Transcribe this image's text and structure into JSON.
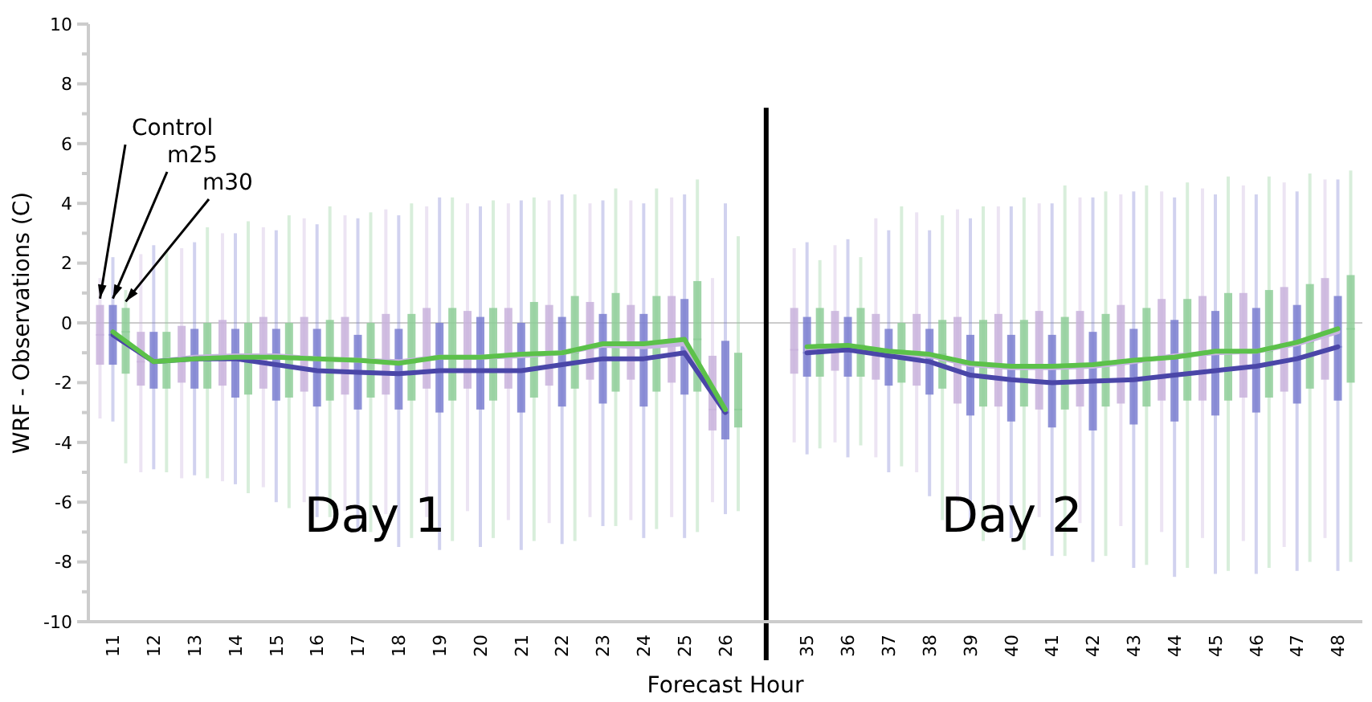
{
  "chart_data": {
    "type": "box",
    "xlabel": "Forecast Hour",
    "ylabel": "WRF  -  Observations (C)",
    "categories": [
      "11",
      "12",
      "13",
      "14",
      "15",
      "16",
      "17",
      "18",
      "19",
      "20",
      "21",
      "22",
      "23",
      "24",
      "25",
      "26",
      null,
      "35",
      "36",
      "37",
      "38",
      "39",
      "40",
      "41",
      "42",
      "43",
      "44",
      "45",
      "46",
      "47",
      "48"
    ],
    "ylim": [
      -10,
      10
    ],
    "yticks": [
      -10,
      {
        "value": -9,
        "label": null
      },
      -8,
      {
        "value": -7,
        "label": null
      },
      -6,
      {
        "value": -5,
        "label": null
      },
      -4,
      {
        "value": -3,
        "label": null
      },
      -2,
      {
        "value": -1,
        "label": null
      },
      0,
      {
        "value": 1,
        "label": null
      },
      2,
      {
        "value": 3,
        "label": null
      },
      4,
      {
        "value": 5,
        "label": null
      },
      6,
      {
        "value": 7,
        "label": null
      },
      8,
      {
        "value": 9,
        "label": null
      },
      10
    ],
    "grid": false,
    "legend": "top left",
    "annotations": [
      "Day 1",
      "Day 2"
    ],
    "ref_lines": [
      {
        "axis": "y",
        "value": 0,
        "color": "#cccccc"
      }
    ],
    "series": [
      {
        "name": "Control",
        "color": "#c9b3dc",
        "boxes": [
          {
            "low": -3.2,
            "q1": -1.4,
            "median": -0.4,
            "q3": 0.6,
            "high": 1.5
          },
          {
            "low": -5.0,
            "q1": -2.1,
            "median": -1.3,
            "q3": -0.3,
            "high": 2.3
          },
          {
            "low": -5.2,
            "q1": -2.0,
            "median": -1.15,
            "q3": -0.1,
            "high": 2.5
          },
          {
            "low": -5.3,
            "q1": -2.1,
            "median": -1.1,
            "q3": 0.1,
            "high": 3.0
          },
          {
            "low": -5.5,
            "q1": -2.2,
            "median": -1.1,
            "q3": 0.2,
            "high": 3.2
          },
          {
            "low": -6.0,
            "q1": -2.3,
            "median": -1.2,
            "q3": 0.2,
            "high": 3.5
          },
          {
            "low": -6.3,
            "q1": -2.4,
            "median": -1.25,
            "q3": 0.2,
            "high": 3.6
          },
          {
            "low": -6.4,
            "q1": -2.4,
            "median": -1.3,
            "q3": 0.3,
            "high": 3.8
          },
          {
            "low": -6.5,
            "q1": -2.2,
            "median": -1.15,
            "q3": 0.5,
            "high": 3.9
          },
          {
            "low": -6.3,
            "q1": -2.2,
            "median": -1.15,
            "q3": 0.4,
            "high": 4.0
          },
          {
            "low": -6.6,
            "q1": -2.2,
            "median": -1.1,
            "q3": 0.5,
            "high": 4.0
          },
          {
            "low": -6.7,
            "q1": -2.1,
            "median": -1.0,
            "q3": 0.6,
            "high": 4.1
          },
          {
            "low": -6.5,
            "q1": -1.9,
            "median": -0.75,
            "q3": 0.7,
            "high": 4.0
          },
          {
            "low": -6.6,
            "q1": -1.9,
            "median": -0.8,
            "q3": 0.6,
            "high": 4.1
          },
          {
            "low": -6.5,
            "q1": -2.0,
            "median": -0.7,
            "q3": 0.9,
            "high": 4.2
          },
          {
            "low": -6.0,
            "q1": -3.6,
            "median": -2.9,
            "q3": -1.1,
            "high": 1.5
          },
          null,
          {
            "low": -4.0,
            "q1": -1.7,
            "median": -0.9,
            "q3": 0.5,
            "high": 2.5
          },
          {
            "low": -4.0,
            "q1": -1.6,
            "median": -0.85,
            "q3": 0.4,
            "high": 2.6
          },
          {
            "low": -4.5,
            "q1": -1.9,
            "median": -1.0,
            "q3": 0.3,
            "high": 3.5
          },
          {
            "low": -5.0,
            "q1": -2.1,
            "median": -1.1,
            "q3": 0.3,
            "high": 3.7
          },
          {
            "low": -6.0,
            "q1": -2.7,
            "median": -1.4,
            "q3": 0.2,
            "high": 3.8
          },
          {
            "low": -6.2,
            "q1": -2.8,
            "median": -1.5,
            "q3": 0.3,
            "high": 3.9
          },
          {
            "low": -6.5,
            "q1": -2.9,
            "median": -1.5,
            "q3": 0.4,
            "high": 4.0
          },
          {
            "low": -6.7,
            "q1": -2.8,
            "median": -1.45,
            "q3": 0.4,
            "high": 4.2
          },
          {
            "low": -6.8,
            "q1": -2.7,
            "median": -1.3,
            "q3": 0.6,
            "high": 4.3
          },
          {
            "low": -7.0,
            "q1": -2.6,
            "median": -1.1,
            "q3": 0.8,
            "high": 4.4
          },
          {
            "low": -7.2,
            "q1": -2.6,
            "median": -1.0,
            "q3": 0.9,
            "high": 4.5
          },
          {
            "low": -7.3,
            "q1": -2.5,
            "median": -0.95,
            "q3": 1.0,
            "high": 4.6
          },
          {
            "low": -7.5,
            "q1": -2.3,
            "median": -0.7,
            "q3": 1.2,
            "high": 4.7
          },
          {
            "low": -7.2,
            "q1": -1.9,
            "median": -0.3,
            "q3": 1.5,
            "high": 4.8
          }
        ]
      },
      {
        "name": "m25",
        "color": "#7b7fd0",
        "boxes": [
          {
            "low": -3.3,
            "q1": -1.4,
            "median": -0.4,
            "q3": 0.6,
            "high": 2.2
          },
          {
            "low": -4.9,
            "q1": -2.2,
            "median": -1.3,
            "q3": -0.3,
            "high": 2.6
          },
          {
            "low": -5.1,
            "q1": -2.2,
            "median": -1.2,
            "q3": -0.2,
            "high": 2.7
          },
          {
            "low": -5.4,
            "q1": -2.5,
            "median": -1.2,
            "q3": -0.2,
            "high": 3.0
          },
          {
            "low": -6.0,
            "q1": -2.6,
            "median": -1.4,
            "q3": -0.2,
            "high": 3.1
          },
          {
            "low": -6.5,
            "q1": -2.8,
            "median": -1.6,
            "q3": -0.2,
            "high": 3.3
          },
          {
            "low": -7.0,
            "q1": -2.9,
            "median": -1.65,
            "q3": -0.4,
            "high": 3.5
          },
          {
            "low": -7.5,
            "q1": -2.9,
            "median": -1.7,
            "q3": -0.2,
            "high": 3.6
          },
          {
            "low": -7.6,
            "q1": -3.0,
            "median": -1.6,
            "q3": 0.0,
            "high": 4.2
          },
          {
            "low": -7.5,
            "q1": -2.9,
            "median": -1.6,
            "q3": 0.2,
            "high": 3.9
          },
          {
            "low": -7.6,
            "q1": -3.0,
            "median": -1.6,
            "q3": 0.0,
            "high": 4.1
          },
          {
            "low": -7.4,
            "q1": -2.8,
            "median": -1.4,
            "q3": 0.2,
            "high": 4.3
          },
          {
            "low": -6.8,
            "q1": -2.7,
            "median": -1.2,
            "q3": 0.3,
            "high": 4.1
          },
          {
            "low": -7.2,
            "q1": -2.8,
            "median": -1.2,
            "q3": 0.3,
            "high": 4.0
          },
          {
            "low": -7.2,
            "q1": -2.4,
            "median": -1.0,
            "q3": 0.8,
            "high": 4.3
          },
          {
            "low": -6.4,
            "q1": -3.9,
            "median": -3.0,
            "q3": -0.6,
            "high": 4.0
          },
          null,
          {
            "low": -4.4,
            "q1": -1.8,
            "median": -1.0,
            "q3": 0.2,
            "high": 2.7
          },
          {
            "low": -4.5,
            "q1": -1.8,
            "median": -0.9,
            "q3": 0.2,
            "high": 2.8
          },
          {
            "low": -5.0,
            "q1": -2.1,
            "median": -1.1,
            "q3": -0.2,
            "high": 3.1
          },
          {
            "low": -5.8,
            "q1": -2.4,
            "median": -1.3,
            "q3": -0.2,
            "high": 3.1
          },
          {
            "low": -6.8,
            "q1": -3.1,
            "median": -1.75,
            "q3": -0.4,
            "high": 3.5
          },
          {
            "low": -7.2,
            "q1": -3.3,
            "median": -1.9,
            "q3": -0.4,
            "high": 3.9
          },
          {
            "low": -7.8,
            "q1": -3.5,
            "median": -2.0,
            "q3": -0.4,
            "high": 4.0
          },
          {
            "low": -8.0,
            "q1": -3.6,
            "median": -1.95,
            "q3": -0.3,
            "high": 4.2
          },
          {
            "low": -8.2,
            "q1": -3.4,
            "median": -1.9,
            "q3": -0.2,
            "high": 4.4
          },
          {
            "low": -8.5,
            "q1": -3.3,
            "median": -1.75,
            "q3": 0.1,
            "high": 4.2
          },
          {
            "low": -8.4,
            "q1": -3.1,
            "median": -1.6,
            "q3": 0.4,
            "high": 4.3
          },
          {
            "low": -8.4,
            "q1": -3.0,
            "median": -1.45,
            "q3": 0.5,
            "high": 4.3
          },
          {
            "low": -8.3,
            "q1": -2.7,
            "median": -1.2,
            "q3": 0.6,
            "high": 4.4
          },
          {
            "low": -8.3,
            "q1": -2.6,
            "median": -0.8,
            "q3": 0.9,
            "high": 4.8
          }
        ]
      },
      {
        "name": "m30",
        "color": "#8fce99",
        "boxes": [
          {
            "low": -4.7,
            "q1": -1.7,
            "median": -0.3,
            "q3": 0.5,
            "high": 1.1
          },
          {
            "low": -5.0,
            "q1": -2.2,
            "median": -1.3,
            "q3": -0.3,
            "high": 2.4
          },
          {
            "low": -5.2,
            "q1": -2.2,
            "median": -1.2,
            "q3": 0.0,
            "high": 3.2
          },
          {
            "low": -5.7,
            "q1": -2.4,
            "median": -1.15,
            "q3": 0.0,
            "high": 3.4
          },
          {
            "low": -6.2,
            "q1": -2.5,
            "median": -1.15,
            "q3": 0.0,
            "high": 3.6
          },
          {
            "low": -6.5,
            "q1": -2.6,
            "median": -1.2,
            "q3": 0.1,
            "high": 3.9
          },
          {
            "low": -7.0,
            "q1": -2.5,
            "median": -1.25,
            "q3": 0.0,
            "high": 3.7
          },
          {
            "low": -7.2,
            "q1": -2.6,
            "median": -1.35,
            "q3": 0.3,
            "high": 4.0
          },
          {
            "low": -7.3,
            "q1": -2.6,
            "median": -1.15,
            "q3": 0.5,
            "high": 4.2
          },
          {
            "low": -7.2,
            "q1": -2.6,
            "median": -1.15,
            "q3": 0.5,
            "high": 4.1
          },
          {
            "low": -7.3,
            "q1": -2.5,
            "median": -1.05,
            "q3": 0.7,
            "high": 4.2
          },
          {
            "low": -7.3,
            "q1": -2.2,
            "median": -1.0,
            "q3": 0.9,
            "high": 4.3
          },
          {
            "low": -6.8,
            "q1": -2.3,
            "median": -0.7,
            "q3": 1.0,
            "high": 4.5
          },
          {
            "low": -6.9,
            "q1": -2.3,
            "median": -0.7,
            "q3": 0.9,
            "high": 4.5
          },
          {
            "low": -7.0,
            "q1": -2.3,
            "median": -0.55,
            "q3": 1.4,
            "high": 4.8
          },
          {
            "low": -6.3,
            "q1": -3.5,
            "median": -2.9,
            "q3": -1.0,
            "high": 2.9
          },
          null,
          {
            "low": -4.2,
            "q1": -1.8,
            "median": -0.8,
            "q3": 0.5,
            "high": 2.1
          },
          {
            "low": -4.1,
            "q1": -1.8,
            "median": -0.75,
            "q3": 0.5,
            "high": 2.2
          },
          {
            "low": -4.8,
            "q1": -2.0,
            "median": -0.95,
            "q3": 0.0,
            "high": 3.9
          },
          {
            "low": -6.6,
            "q1": -2.2,
            "median": -1.05,
            "q3": 0.1,
            "high": 3.6
          },
          {
            "low": -7.3,
            "q1": -2.8,
            "median": -1.35,
            "q3": 0.1,
            "high": 3.9
          },
          {
            "low": -7.6,
            "q1": -2.8,
            "median": -1.45,
            "q3": 0.1,
            "high": 4.2
          },
          {
            "low": -7.8,
            "q1": -2.9,
            "median": -1.45,
            "q3": 0.2,
            "high": 4.6
          },
          {
            "low": -7.8,
            "q1": -2.8,
            "median": -1.4,
            "q3": 0.3,
            "high": 4.4
          },
          {
            "low": -8.1,
            "q1": -2.8,
            "median": -1.25,
            "q3": 0.5,
            "high": 4.6
          },
          {
            "low": -8.2,
            "q1": -2.6,
            "median": -1.15,
            "q3": 0.8,
            "high": 4.7
          },
          {
            "low": -8.3,
            "q1": -2.6,
            "median": -0.95,
            "q3": 1.0,
            "high": 4.9
          },
          {
            "low": -8.2,
            "q1": -2.5,
            "median": -0.95,
            "q3": 1.1,
            "high": 4.9
          },
          {
            "low": -8.0,
            "q1": -2.2,
            "median": -0.65,
            "q3": 1.3,
            "high": 5.0
          },
          {
            "low": -8.0,
            "q1": -2.0,
            "median": -0.2,
            "q3": 1.6,
            "high": 5.1
          }
        ]
      },
      {
        "type": "line",
        "color": "#c7b5e0",
        "values": [
          -0.4,
          -1.3,
          -1.15,
          -1.1,
          -1.1,
          -1.2,
          -1.25,
          -1.3,
          -1.15,
          -1.15,
          -1.1,
          -1.0,
          -0.75,
          -0.8,
          -0.7,
          -2.9,
          null,
          -0.9,
          -0.85,
          -1.0,
          -1.1,
          -1.4,
          -1.5,
          -1.5,
          -1.45,
          -1.3,
          -1.1,
          -1.0,
          -0.95,
          -0.7,
          -0.3
        ]
      },
      {
        "type": "line",
        "color": "#4a46a8",
        "values": [
          -0.4,
          -1.3,
          -1.2,
          -1.2,
          -1.4,
          -1.6,
          -1.65,
          -1.7,
          -1.6,
          -1.6,
          -1.6,
          -1.4,
          -1.2,
          -1.2,
          -1.0,
          -3.0,
          null,
          -1.0,
          -0.9,
          -1.1,
          -1.3,
          -1.75,
          -1.9,
          -2.0,
          -1.95,
          -1.9,
          -1.75,
          -1.6,
          -1.45,
          -1.2,
          -0.8
        ]
      },
      {
        "type": "line",
        "color": "#5cc14a",
        "values": [
          -0.3,
          -1.3,
          -1.2,
          -1.15,
          -1.15,
          -1.2,
          -1.25,
          -1.35,
          -1.15,
          -1.15,
          -1.05,
          -1.0,
          -0.7,
          -0.7,
          -0.55,
          -2.9,
          null,
          -0.8,
          -0.75,
          -0.95,
          -1.05,
          -1.35,
          -1.45,
          -1.45,
          -1.4,
          -1.25,
          -1.15,
          -0.95,
          -0.95,
          -0.65,
          -0.2
        ]
      }
    ]
  }
}
